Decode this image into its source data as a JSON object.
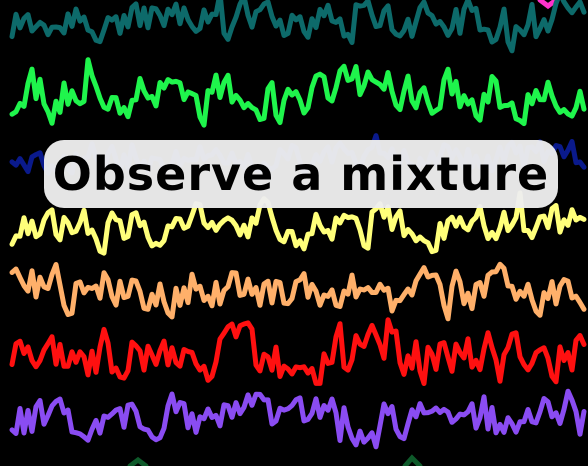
{
  "caption": "Observe a mixture",
  "signals": [
    {
      "name": "teal-signal",
      "color": "#0d6a6a",
      "seed": 11
    },
    {
      "name": "green-signal",
      "color": "#1ff54c",
      "seed": 23
    },
    {
      "name": "navy-signal",
      "color": "#0a1a8c",
      "seed": 37
    },
    {
      "name": "yellow-signal",
      "color": "#ffff7a",
      "seed": 41
    },
    {
      "name": "orange-signal",
      "color": "#ffb06a",
      "seed": 53
    },
    {
      "name": "red-signal",
      "color": "#ff1010",
      "seed": 67
    },
    {
      "name": "purple-signal",
      "color": "#8a4cf2",
      "seed": 79
    }
  ]
}
